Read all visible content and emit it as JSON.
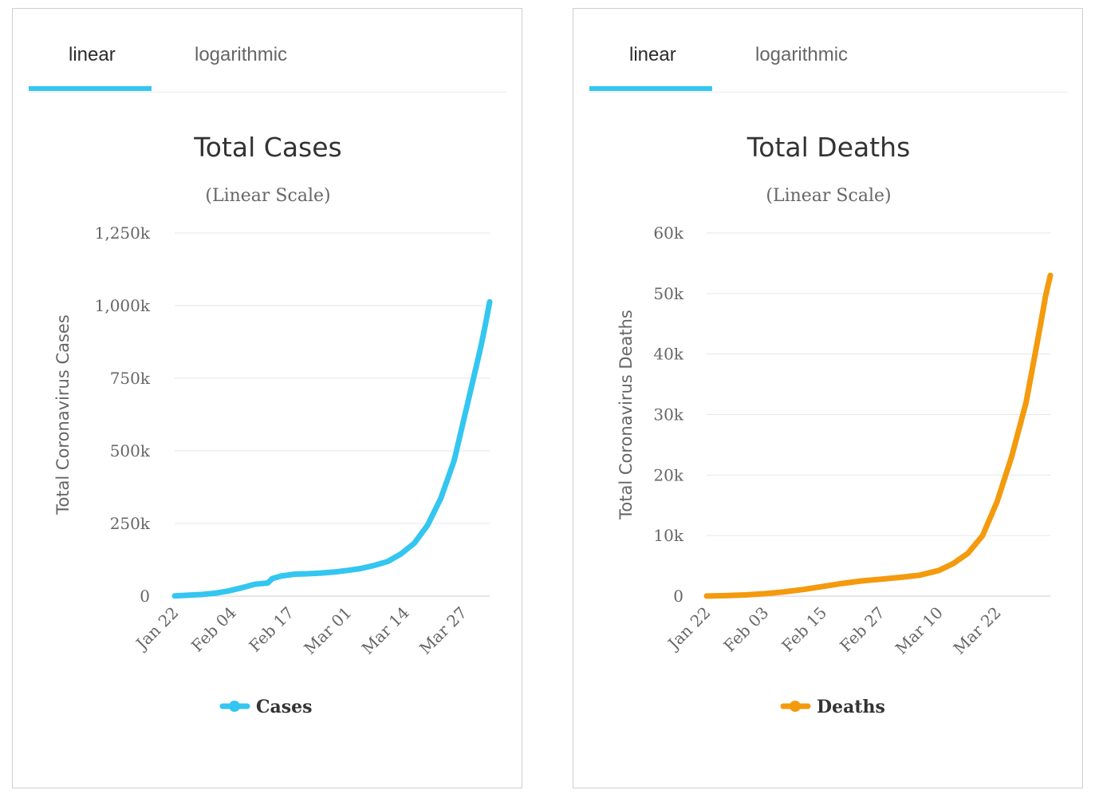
{
  "colors": {
    "cases": "#33c6f0",
    "deaths": "#f39a0d",
    "tab_underline": "#33c6f0"
  },
  "panels": [
    {
      "tabs": [
        {
          "label": "linear",
          "active": true
        },
        {
          "label": "logarithmic",
          "active": false
        }
      ],
      "chart_data": {
        "type": "line",
        "title": "Total Cases",
        "subtitle": "(Linear Scale)",
        "xlabel": "",
        "ylabel": "Total Coronavirus Cases",
        "ylim": [
          0,
          1250000
        ],
        "yticks": [
          0,
          250000,
          500000,
          750000,
          1000000,
          1250000
        ],
        "ytick_labels": [
          "0",
          "250k",
          "500k",
          "750k",
          "1,000k",
          "1,250k"
        ],
        "xtick_labels": [
          "Jan 22",
          "Feb 04",
          "Feb 17",
          "Mar 01",
          "Mar 14",
          "Mar 27"
        ],
        "grid": true,
        "legend_position": "bottom",
        "series": [
          {
            "name": "Cases",
            "color": "#33c6f0",
            "x": [
              "Jan 22",
              "Jan 25",
              "Jan 28",
              "Jan 31",
              "Feb 03",
              "Feb 06",
              "Feb 09",
              "Feb 12",
              "Feb 13",
              "Feb 15",
              "Feb 18",
              "Feb 21",
              "Feb 24",
              "Feb 27",
              "Mar 01",
              "Mar 04",
              "Mar 07",
              "Mar 10",
              "Mar 13",
              "Mar 16",
              "Mar 19",
              "Mar 22",
              "Mar 25",
              "Mar 28",
              "Mar 31",
              "Apr 01",
              "Apr 02"
            ],
            "values": [
              555,
              2900,
              5600,
              9900,
              17400,
              28300,
              40600,
              45200,
              60400,
              68900,
              75600,
              76900,
              79300,
              83000,
              88400,
              95100,
              105800,
              119000,
              145000,
              182000,
              244000,
              337000,
              467000,
              662000,
              858000,
              932000,
              1013000
            ]
          }
        ]
      }
    },
    {
      "tabs": [
        {
          "label": "linear",
          "active": true
        },
        {
          "label": "logarithmic",
          "active": false
        }
      ],
      "chart_data": {
        "type": "line",
        "title": "Total Deaths",
        "subtitle": "(Linear Scale)",
        "xlabel": "",
        "ylabel": "Total Coronavirus Deaths",
        "ylim": [
          0,
          60000
        ],
        "yticks": [
          0,
          10000,
          20000,
          30000,
          40000,
          50000,
          60000
        ],
        "ytick_labels": [
          "0",
          "10k",
          "20k",
          "30k",
          "40k",
          "50k",
          "60k"
        ],
        "xtick_labels": [
          "Jan 22",
          "Feb 03",
          "Feb 15",
          "Feb 27",
          "Mar 10",
          "Mar 22"
        ],
        "grid": true,
        "legend_position": "bottom",
        "series": [
          {
            "name": "Deaths",
            "color": "#f39a0d",
            "x": [
              "Jan 22",
              "Jan 26",
              "Jan 30",
              "Feb 03",
              "Feb 07",
              "Feb 11",
              "Feb 15",
              "Feb 19",
              "Feb 23",
              "Feb 27",
              "Mar 02",
              "Mar 06",
              "Mar 10",
              "Mar 13",
              "Mar 16",
              "Mar 19",
              "Mar 22",
              "Mar 25",
              "Mar 28",
              "Mar 31",
              "Apr 01",
              "Apr 02"
            ],
            "values": [
              17,
              80,
              200,
              400,
              700,
              1100,
              1600,
              2100,
              2500,
              2800,
              3100,
              3450,
              4250,
              5400,
              7100,
              10000,
              15600,
              23000,
              32000,
              45000,
              49500,
              53000
            ]
          }
        ]
      }
    }
  ]
}
